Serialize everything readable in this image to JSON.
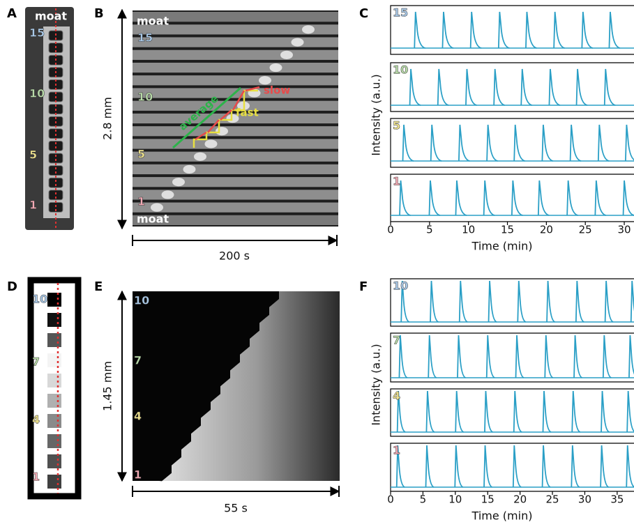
{
  "panel_a": {
    "letter": "A",
    "top_label": "moat",
    "numbers": [
      "15",
      "10",
      "5",
      "1"
    ]
  },
  "panel_b": {
    "letter": "B",
    "top_label": "moat",
    "bottom_label": "moat",
    "numbers": [
      "15",
      "10",
      "5",
      "1"
    ],
    "height_label": "2.8 mm",
    "time_label": "200 s",
    "annotations": [
      "average",
      "fast",
      "slow"
    ]
  },
  "panel_c": {
    "letter": "C",
    "y_label": "Intensity (a.u.)",
    "x_label": "Time (min)",
    "xlim": [
      0,
      31.25
    ],
    "xticks": [
      0,
      5,
      10,
      15,
      20,
      25,
      30
    ],
    "traces": [
      {
        "name": "15",
        "spikes": [
          3.2,
          6.8,
          10.4,
          14,
          17.5,
          21.1,
          24.7,
          28.2
        ]
      },
      {
        "name": "10",
        "spikes": [
          2.6,
          6.2,
          9.8,
          13.4,
          16.9,
          20.5,
          24,
          27.6
        ]
      },
      {
        "name": "5",
        "spikes": [
          1.7,
          5.3,
          8.9,
          12.5,
          16,
          19.6,
          23.2,
          26.8,
          30.3
        ]
      },
      {
        "name": "1",
        "spikes": [
          1.3,
          5.1,
          8.5,
          12.1,
          15.7,
          19.1,
          22.8,
          26.4,
          30
        ]
      }
    ]
  },
  "panel_d": {
    "letter": "D",
    "numbers": [
      "10",
      "7",
      "4",
      "1"
    ]
  },
  "panel_e": {
    "letter": "E",
    "numbers": [
      "10",
      "7",
      "4",
      "1"
    ],
    "height_label": "1.45 mm",
    "time_label": "55 s"
  },
  "panel_f": {
    "letter": "F",
    "y_label": "Intensity (a.u.)",
    "x_label": "Time (min)",
    "xlim": [
      0,
      37.6
    ],
    "xticks": [
      0,
      5,
      10,
      15,
      20,
      25,
      30,
      35
    ],
    "traces": [
      {
        "name": "10",
        "spikes": [
          1.8,
          6.3,
          10.8,
          15.3,
          19.8,
          24.3,
          28.8,
          33.3,
          37.3
        ]
      },
      {
        "name": "7",
        "spikes": [
          1.5,
          6,
          10.5,
          15,
          19.5,
          24,
          28.5,
          33,
          37
        ]
      },
      {
        "name": "4",
        "spikes": [
          1.2,
          5.7,
          10.2,
          14.7,
          19.2,
          23.7,
          28.2,
          32.7,
          36.7
        ]
      },
      {
        "name": "1",
        "spikes": [
          1.1,
          5.6,
          10.1,
          14.6,
          19.1,
          23.6,
          28.1,
          32.6,
          36.6
        ]
      }
    ]
  }
}
